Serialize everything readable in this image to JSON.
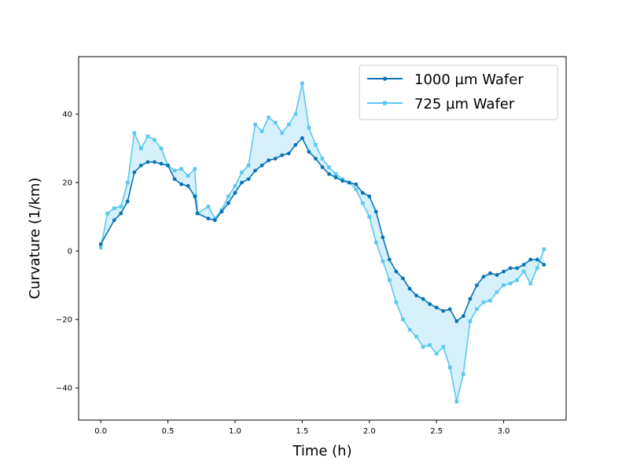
{
  "chart_data": {
    "type": "line",
    "title": "",
    "xlabel": "Time (h)",
    "ylabel": "Curvature (1/km)",
    "xlim": [
      -0.165,
      3.465
    ],
    "ylim": [
      -49.4,
      56.8
    ],
    "xticks": [
      0.0,
      0.5,
      1.0,
      1.5,
      2.0,
      2.5,
      3.0
    ],
    "xtick_labels": [
      "0.0",
      "0.5",
      "1.0",
      "1.5",
      "2.0",
      "2.5",
      "3.0"
    ],
    "yticks": [
      -40,
      -20,
      0,
      20,
      40
    ],
    "ytick_labels": [
      "−40",
      "−20",
      "0",
      "20",
      "40"
    ],
    "grid": false,
    "legend_position": "top-right",
    "fill_between": {
      "color": "#d6f1fb"
    },
    "series": [
      {
        "name": "1000 µm Wafer",
        "color": "#0872b6",
        "marker": "circle",
        "points": [
          [
            0.0,
            2.0
          ],
          [
            0.1,
            9.0
          ],
          [
            0.15,
            11.0
          ],
          [
            0.2,
            14.5
          ],
          [
            0.25,
            23.0
          ],
          [
            0.3,
            25.0
          ],
          [
            0.35,
            26.0
          ],
          [
            0.4,
            26.0
          ],
          [
            0.45,
            25.5
          ],
          [
            0.5,
            25.0
          ],
          [
            0.55,
            21.0
          ],
          [
            0.6,
            19.5
          ],
          [
            0.65,
            19.0
          ],
          [
            0.7,
            16.0
          ],
          [
            0.72,
            11.0
          ],
          [
            0.8,
            9.5
          ],
          [
            0.85,
            9.0
          ],
          [
            0.9,
            11.5
          ],
          [
            0.95,
            14.0
          ],
          [
            1.0,
            17.0
          ],
          [
            1.05,
            20.0
          ],
          [
            1.1,
            21.0
          ],
          [
            1.15,
            23.5
          ],
          [
            1.2,
            25.0
          ],
          [
            1.25,
            26.5
          ],
          [
            1.3,
            27.0
          ],
          [
            1.35,
            28.0
          ],
          [
            1.4,
            28.5
          ],
          [
            1.45,
            31.0
          ],
          [
            1.5,
            33.0
          ],
          [
            1.55,
            29.0
          ],
          [
            1.6,
            27.0
          ],
          [
            1.65,
            24.5
          ],
          [
            1.7,
            22.5
          ],
          [
            1.75,
            21.5
          ],
          [
            1.8,
            20.5
          ],
          [
            1.85,
            20.0
          ],
          [
            1.9,
            19.5
          ],
          [
            1.95,
            17.0
          ],
          [
            2.0,
            16.0
          ],
          [
            2.05,
            11.5
          ],
          [
            2.1,
            4.0
          ],
          [
            2.15,
            -2.5
          ],
          [
            2.2,
            -6.0
          ],
          [
            2.25,
            -8.0
          ],
          [
            2.3,
            -11.0
          ],
          [
            2.35,
            -13.0
          ],
          [
            2.4,
            -14.0
          ],
          [
            2.45,
            -15.5
          ],
          [
            2.5,
            -16.5
          ],
          [
            2.55,
            -17.5
          ],
          [
            2.6,
            -17.0
          ],
          [
            2.65,
            -20.5
          ],
          [
            2.7,
            -19.0
          ],
          [
            2.75,
            -14.0
          ],
          [
            2.8,
            -10.0
          ],
          [
            2.85,
            -7.5
          ],
          [
            2.9,
            -6.5
          ],
          [
            2.95,
            -7.0
          ],
          [
            3.0,
            -6.0
          ],
          [
            3.05,
            -5.0
          ],
          [
            3.1,
            -5.0
          ],
          [
            3.15,
            -4.0
          ],
          [
            3.2,
            -2.5
          ],
          [
            3.25,
            -2.5
          ],
          [
            3.3,
            -4.0
          ]
        ]
      },
      {
        "name": "725 µm Wafer",
        "color": "#5bc8f0",
        "marker": "square",
        "points": [
          [
            0.0,
            1.0
          ],
          [
            0.05,
            11.0
          ],
          [
            0.1,
            12.5
          ],
          [
            0.15,
            13.0
          ],
          [
            0.2,
            20.0
          ],
          [
            0.25,
            34.5
          ],
          [
            0.3,
            30.0
          ],
          [
            0.35,
            33.5
          ],
          [
            0.4,
            32.5
          ],
          [
            0.45,
            30.0
          ],
          [
            0.5,
            25.0
          ],
          [
            0.55,
            23.5
          ],
          [
            0.6,
            24.0
          ],
          [
            0.65,
            22.0
          ],
          [
            0.7,
            24.0
          ],
          [
            0.72,
            11.0
          ],
          [
            0.8,
            13.0
          ],
          [
            0.85,
            9.5
          ],
          [
            0.9,
            12.0
          ],
          [
            0.95,
            16.0
          ],
          [
            1.0,
            19.0
          ],
          [
            1.05,
            23.0
          ],
          [
            1.1,
            25.0
          ],
          [
            1.15,
            37.0
          ],
          [
            1.2,
            35.0
          ],
          [
            1.25,
            39.0
          ],
          [
            1.3,
            37.5
          ],
          [
            1.35,
            34.5
          ],
          [
            1.4,
            37.0
          ],
          [
            1.45,
            40.0
          ],
          [
            1.5,
            49.0
          ],
          [
            1.55,
            36.0
          ],
          [
            1.6,
            31.0
          ],
          [
            1.65,
            27.0
          ],
          [
            1.7,
            24.5
          ],
          [
            1.75,
            22.5
          ],
          [
            1.8,
            21.0
          ],
          [
            1.85,
            20.0
          ],
          [
            1.9,
            18.0
          ],
          [
            1.95,
            14.0
          ],
          [
            2.0,
            10.0
          ],
          [
            2.05,
            2.5
          ],
          [
            2.1,
            -3.0
          ],
          [
            2.15,
            -8.5
          ],
          [
            2.2,
            -15.0
          ],
          [
            2.25,
            -20.0
          ],
          [
            2.3,
            -23.0
          ],
          [
            2.35,
            -25.0
          ],
          [
            2.4,
            -28.0
          ],
          [
            2.45,
            -27.5
          ],
          [
            2.5,
            -30.0
          ],
          [
            2.55,
            -28.0
          ],
          [
            2.6,
            -34.0
          ],
          [
            2.65,
            -44.0
          ],
          [
            2.7,
            -36.0
          ],
          [
            2.75,
            -20.5
          ],
          [
            2.8,
            -17.0
          ],
          [
            2.85,
            -15.0
          ],
          [
            2.9,
            -14.5
          ],
          [
            2.95,
            -12.0
          ],
          [
            3.0,
            -10.0
          ],
          [
            3.05,
            -9.5
          ],
          [
            3.1,
            -8.5
          ],
          [
            3.15,
            -6.0
          ],
          [
            3.2,
            -9.5
          ],
          [
            3.25,
            -5.0
          ],
          [
            3.3,
            0.5
          ]
        ]
      }
    ]
  }
}
